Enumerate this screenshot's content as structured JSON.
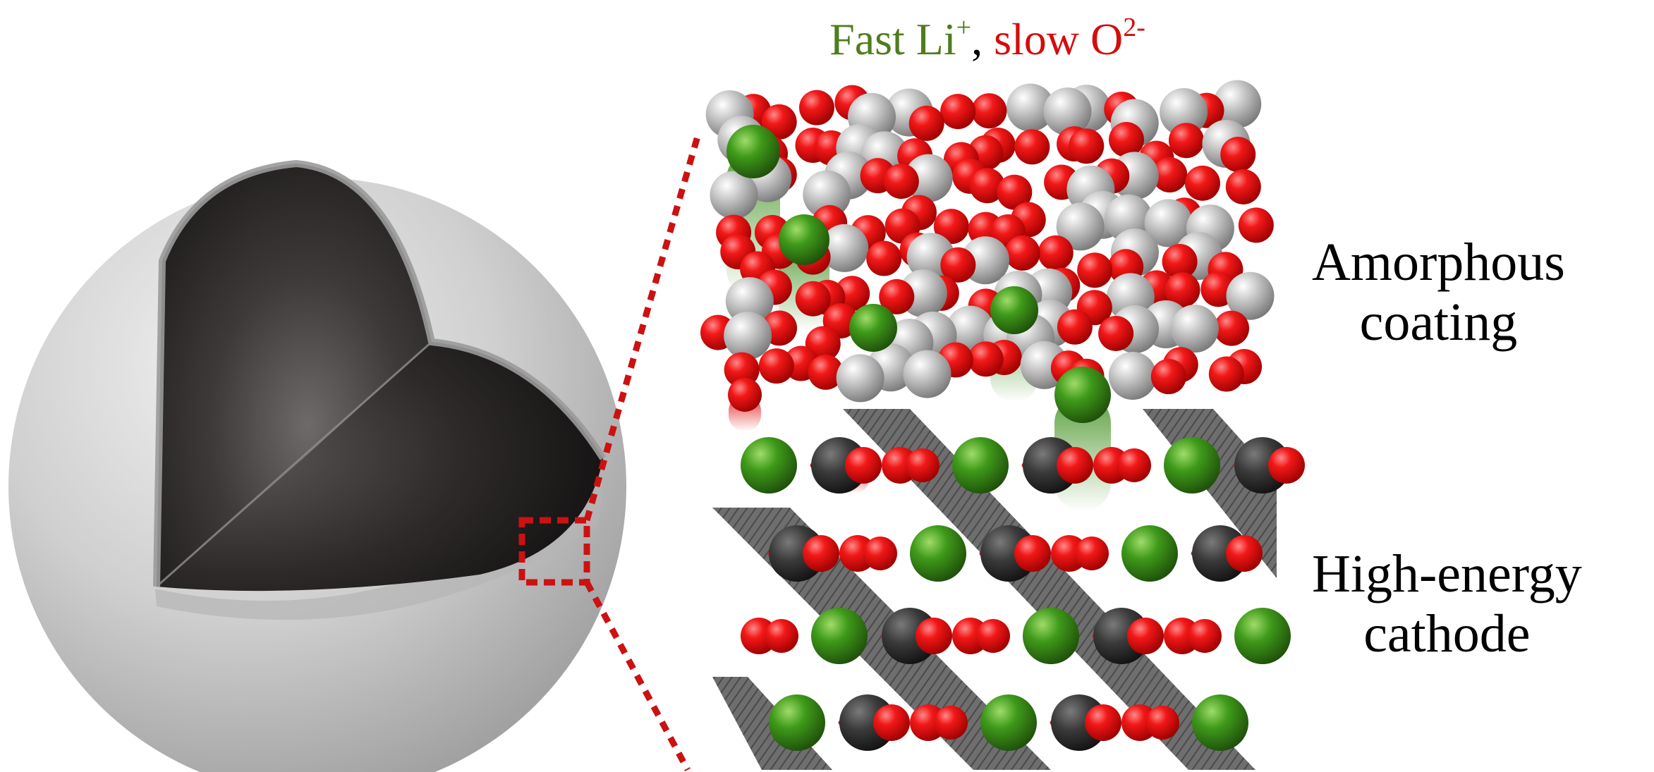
{
  "title": {
    "fast_text": "Fast Li",
    "fast_sup": "+",
    "separator": ", ",
    "slow_text": "slow O",
    "slow_sup": "2-",
    "fast_color": "#4e7d1e",
    "slow_color": "#d40d0d"
  },
  "labels": {
    "coating": [
      "Amorphous",
      "coating"
    ],
    "cathode": [
      "High-energy",
      "cathode"
    ]
  },
  "colors": {
    "lithium": "#3f8f1e",
    "oxygen": "#e00d0d",
    "coating_metal": "#b9b9b9",
    "transition_metal": "#3a3a3a",
    "zoom_box": "#cc1111",
    "shell": "#c4c4c4",
    "core": "#3a3636"
  }
}
